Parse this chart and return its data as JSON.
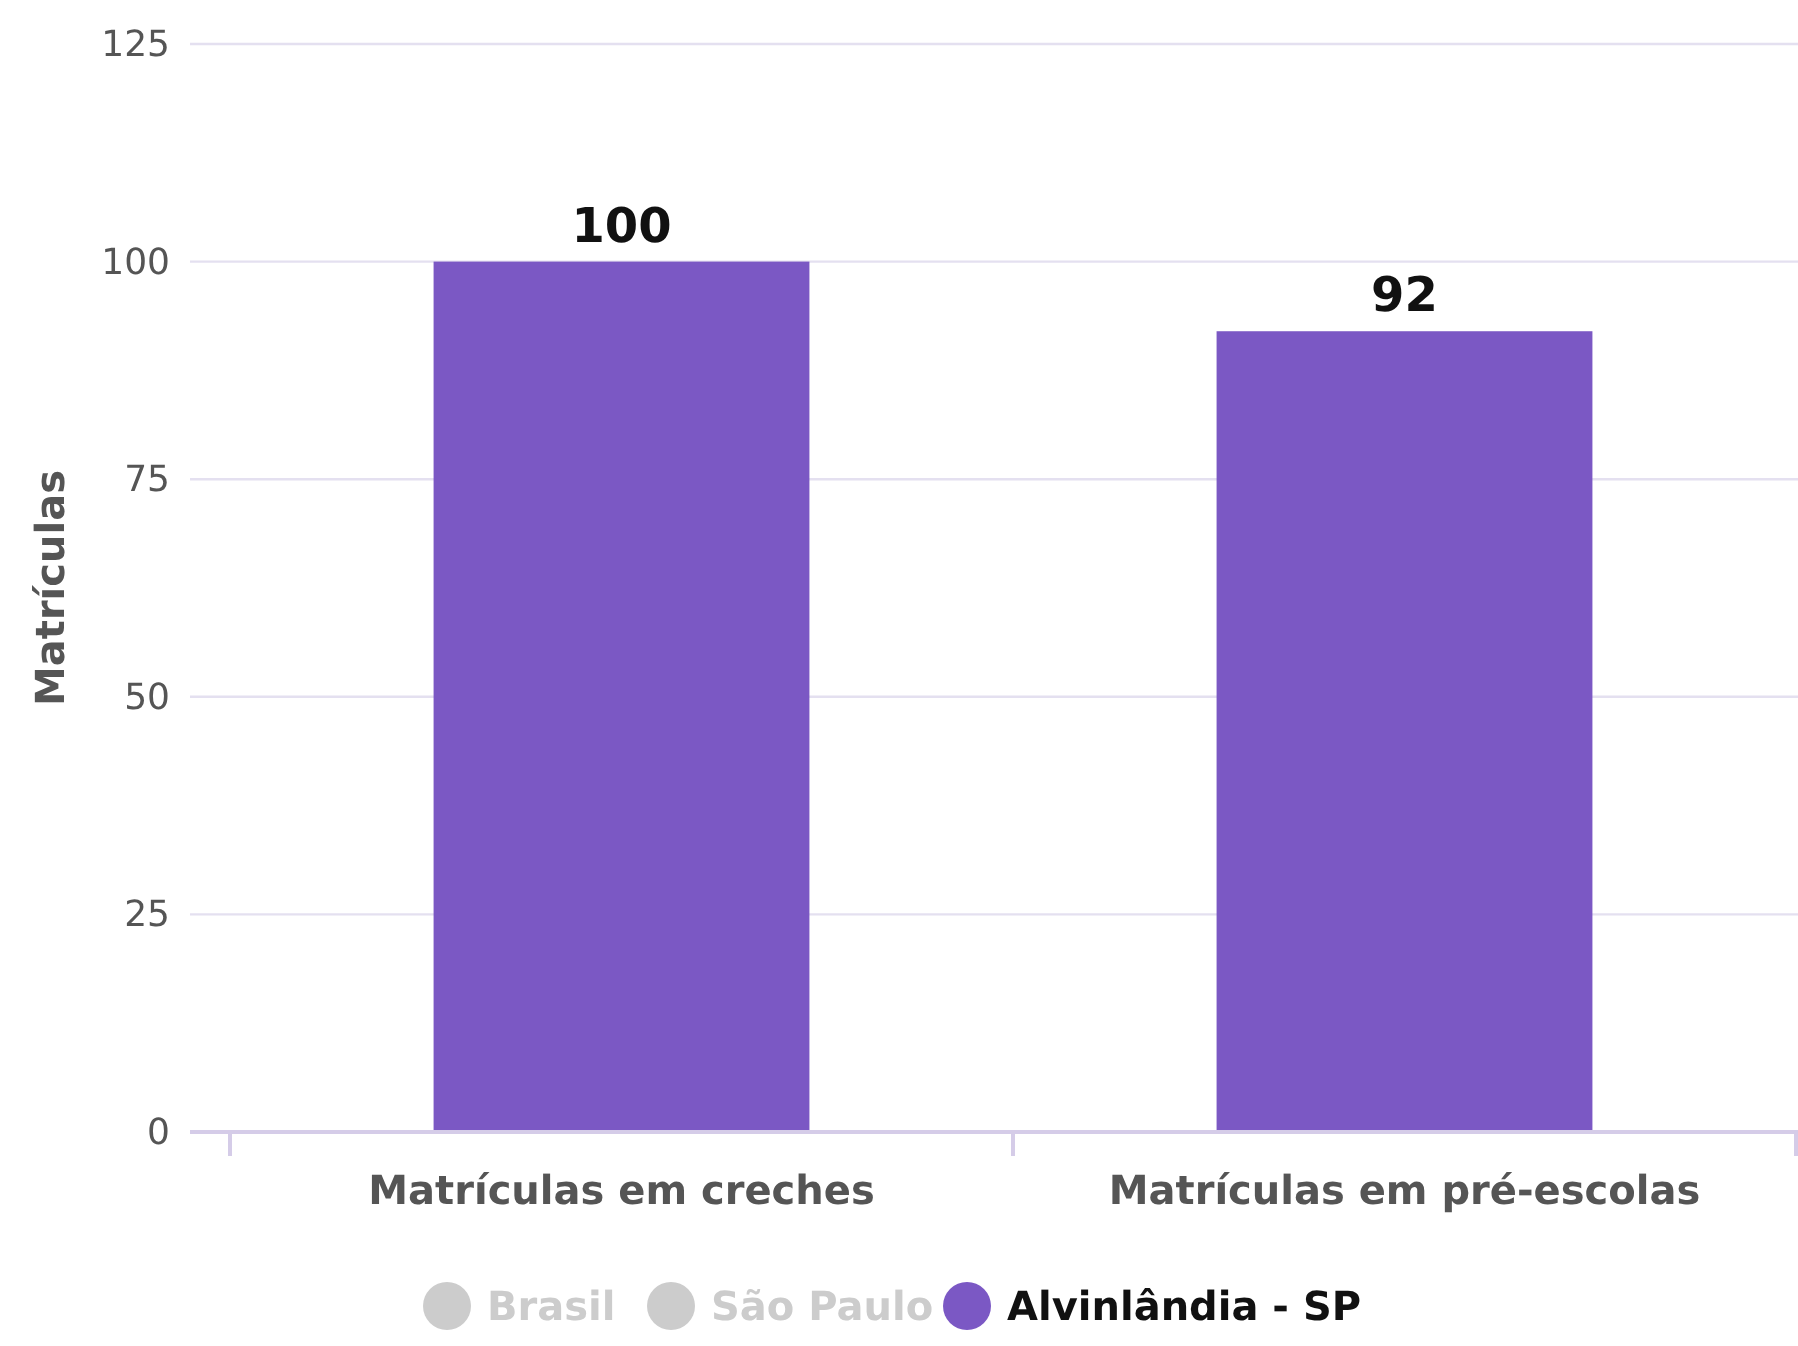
{
  "chart_data": {
    "type": "bar",
    "ylabel": "Matrículas",
    "categories": [
      "Matrículas em creches",
      "Matrículas em pré-escolas"
    ],
    "series": [
      {
        "name": "Brasil",
        "color": "#cccccc",
        "values": [
          null,
          null
        ]
      },
      {
        "name": "São Paulo",
        "color": "#cccccc",
        "values": [
          null,
          null
        ]
      },
      {
        "name": "Alvinlândia - SP",
        "color": "#7b58c4",
        "values": [
          100,
          92
        ]
      }
    ],
    "ylim": [
      0,
      125
    ],
    "yticks": [
      0,
      25,
      50,
      75,
      100,
      125
    ],
    "grid": "y",
    "data_labels": true,
    "legend": "bottom"
  }
}
